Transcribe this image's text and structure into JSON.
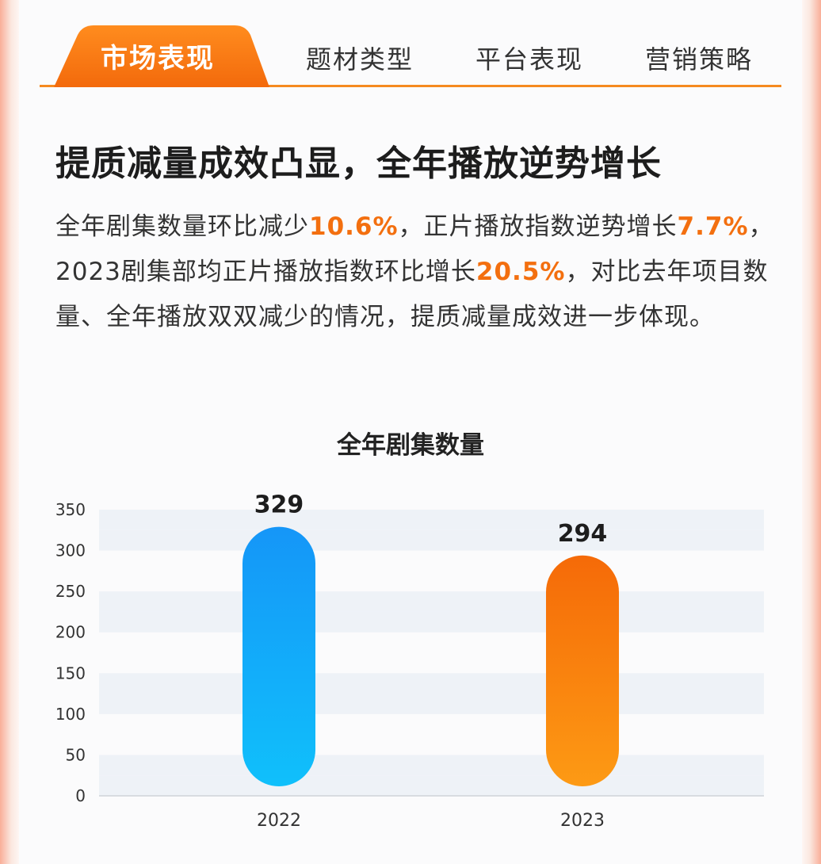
{
  "tabs": {
    "active": "市场表现",
    "items": [
      "题材类型",
      "平台表现",
      "营销策略"
    ]
  },
  "headline": "提质减量成效凸显，全年播放逆势增长",
  "paragraph": {
    "p1": "全年剧集数量环比减少",
    "h1": "10.6%",
    "p2": "，正片播放指数逆势增长",
    "h2": "7.7%",
    "p3": "，2023剧集部均正片播放指数环比增长",
    "h3": "20.5%",
    "p4": "，对比去年项目数量、全年播放双双减少的情况，提质减量成效进一步体现。"
  },
  "colors": {
    "accent": "#f58a1f",
    "highlight": "#f36f0f",
    "bar_2022": [
      "#1596f8",
      "#10c0fb"
    ],
    "bar_2023": [
      "#f56a08",
      "#fd9a14"
    ]
  },
  "chart_data": {
    "type": "bar",
    "title": "全年剧集数量",
    "categories": [
      "2022",
      "2023"
    ],
    "values": [
      329,
      294
    ],
    "ylim": [
      0,
      350
    ],
    "yticks": [
      0,
      50,
      100,
      150,
      200,
      250,
      300,
      350
    ],
    "xlabel": "",
    "ylabel": "",
    "grid": "alternating horizontal bands",
    "legend": "none"
  }
}
